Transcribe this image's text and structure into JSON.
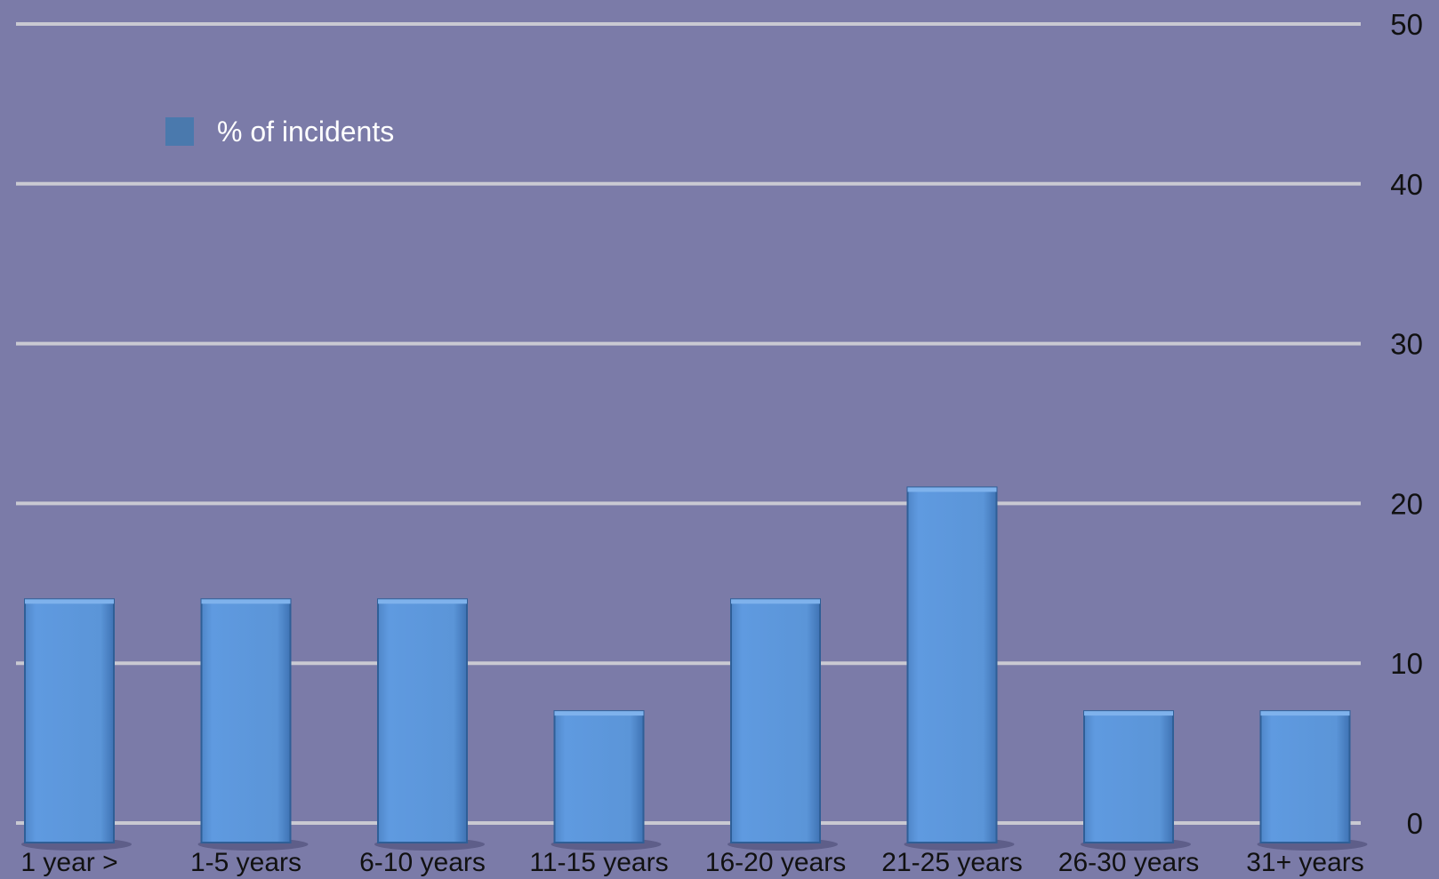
{
  "chart_data": {
    "type": "bar",
    "categories": [
      "1 year >",
      "1-5 years",
      "6-10 years",
      "11-15 years",
      "16-20 years",
      "21-25 years",
      "26-30 years",
      "31+ years"
    ],
    "series": [
      {
        "name": "% of incidents",
        "values": [
          14,
          14,
          14,
          7,
          14,
          21,
          7,
          7
        ]
      }
    ],
    "ylim": [
      0,
      50
    ],
    "yticks": [
      0,
      10,
      20,
      30,
      40,
      50
    ],
    "y_axis_side": "right",
    "grid": true,
    "legend": {
      "position": "top-left"
    },
    "colors": {
      "background": "#7b7ba8",
      "bar": "#5b95d8",
      "bar_dark": "#3f73b4",
      "legend_swatch": "#4a79ad",
      "grid": "#c9c9d2",
      "legend_text": "#ffffff",
      "tick_text": "#111111"
    }
  }
}
